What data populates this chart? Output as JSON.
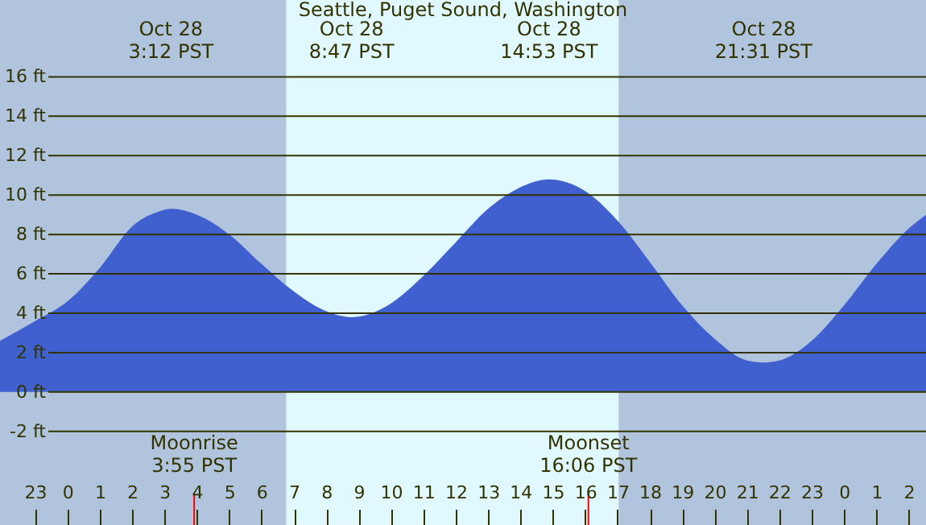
{
  "chart_data": {
    "type": "area",
    "title": "Seattle, Puget Sound, Washington",
    "x": [
      "--10-27T21:55",
      "--10-27T23:00",
      "--10-28T00:00",
      "--10-28T01:00",
      "--10-28T02:00",
      "--10-28T02:54",
      "--10-28T03:12",
      "--10-28T04:00",
      "--10-28T05:00",
      "--10-28T06:00",
      "--10-28T07:00",
      "--10-28T08:00",
      "--10-28T08:47",
      "--10-28T10:00",
      "--10-28T11:00",
      "--10-28T12:00",
      "--10-28T13:00",
      "--10-28T14:00",
      "--10-28T14:53",
      "--10-28T16:00",
      "--10-28T17:00",
      "--10-28T18:00",
      "--10-28T19:00",
      "--10-28T20:00",
      "--10-28T21:00",
      "--10-28T21:31",
      "--10-28T22:00",
      "--10-28T23:00",
      "--10-29T00:00",
      "--10-29T01:00",
      "--10-29T02:00",
      "--10-29T02:32"
    ],
    "series": [
      {
        "color": "#4060d0",
        "values": [
          2.6,
          3.6,
          4.6,
          6.3,
          8.4,
          9.2,
          9.3,
          9.0,
          8.0,
          6.5,
          5.1,
          4.1,
          3.8,
          4.5,
          5.9,
          7.6,
          9.3,
          10.4,
          10.8,
          10.2,
          8.7,
          6.6,
          4.4,
          2.7,
          1.6,
          1.5,
          1.6,
          2.6,
          4.4,
          6.5,
          8.3,
          9.0
        ]
      }
    ],
    "xlim": [
      "--10-27T21:55",
      "--10-29T02:32"
    ],
    "xticks": [
      {
        "value": "--10-27T23:00",
        "label": "23"
      },
      {
        "value": "--10-28T00:00",
        "label": "0"
      },
      {
        "value": "--10-28T01:00",
        "label": "1"
      },
      {
        "value": "--10-28T02:00",
        "label": "2"
      },
      {
        "value": "--10-28T03:00",
        "label": "3"
      },
      {
        "value": "--10-28T04:00",
        "label": "4"
      },
      {
        "value": "--10-28T05:00",
        "label": "5"
      },
      {
        "value": "--10-28T06:00",
        "label": "6"
      },
      {
        "value": "--10-28T07:00",
        "label": "7"
      },
      {
        "value": "--10-28T08:00",
        "label": "8"
      },
      {
        "value": "--10-28T09:00",
        "label": "9"
      },
      {
        "value": "--10-28T10:00",
        "label": "10"
      },
      {
        "value": "--10-28T11:00",
        "label": "11"
      },
      {
        "value": "--10-28T12:00",
        "label": "12"
      },
      {
        "value": "--10-28T13:00",
        "label": "13"
      },
      {
        "value": "--10-28T14:00",
        "label": "14"
      },
      {
        "value": "--10-28T15:00",
        "label": "15"
      },
      {
        "value": "--10-28T16:00",
        "label": "16"
      },
      {
        "value": "--10-28T17:00",
        "label": "17"
      },
      {
        "value": "--10-28T18:00",
        "label": "18"
      },
      {
        "value": "--10-28T19:00",
        "label": "19"
      },
      {
        "value": "--10-28T20:00",
        "label": "20"
      },
      {
        "value": "--10-28T21:00",
        "label": "21"
      },
      {
        "value": "--10-28T22:00",
        "label": "22"
      },
      {
        "value": "--10-28T23:00",
        "label": "23"
      },
      {
        "value": "--10-29T00:00",
        "label": "0"
      },
      {
        "value": "--10-29T01:00",
        "label": "1"
      },
      {
        "value": "--10-29T02:00",
        "label": "2"
      }
    ],
    "ylim": [
      -6.75,
      19.9
    ],
    "yticks": [
      {
        "value": -2,
        "label": "-2 ft"
      },
      {
        "value": 0,
        "label": "0 ft"
      },
      {
        "value": 2,
        "label": "2 ft"
      },
      {
        "value": 4,
        "label": "4 ft"
      },
      {
        "value": 6,
        "label": "6 ft"
      },
      {
        "value": 8,
        "label": "8 ft"
      },
      {
        "value": 10,
        "label": "10 ft"
      },
      {
        "value": 12,
        "label": "12 ft"
      },
      {
        "value": 14,
        "label": "14 ft"
      },
      {
        "value": 16,
        "label": "16 ft"
      }
    ],
    "grid": "y",
    "bands": [
      {
        "axis": "x",
        "from": "--10-27T21:55",
        "to": "--10-28T06:46",
        "color": "#b0c4de"
      },
      {
        "axis": "x",
        "from": "--10-28T06:46",
        "to": "--10-28T17:02",
        "color": "#e0f8ff"
      },
      {
        "axis": "x",
        "from": "--10-28T17:02",
        "to": "--10-29T02:32",
        "color": "#b0c4de"
      }
    ],
    "ref_lines": [
      {
        "axis": "x",
        "value": "--10-28T03:55",
        "label": "Moonrise\n3:55 PST",
        "color": "#ff0000"
      },
      {
        "axis": "x",
        "value": "--10-28T16:06",
        "label": "Moonset\n16:06 PST",
        "color": "#ff0000"
      }
    ],
    "annotations": [
      "Oct 28\n3:12 PST",
      "Oct 28\n8:47 PST",
      "Oct 28\n14:53 PST",
      "Oct 28\n21:31 PST"
    ]
  }
}
